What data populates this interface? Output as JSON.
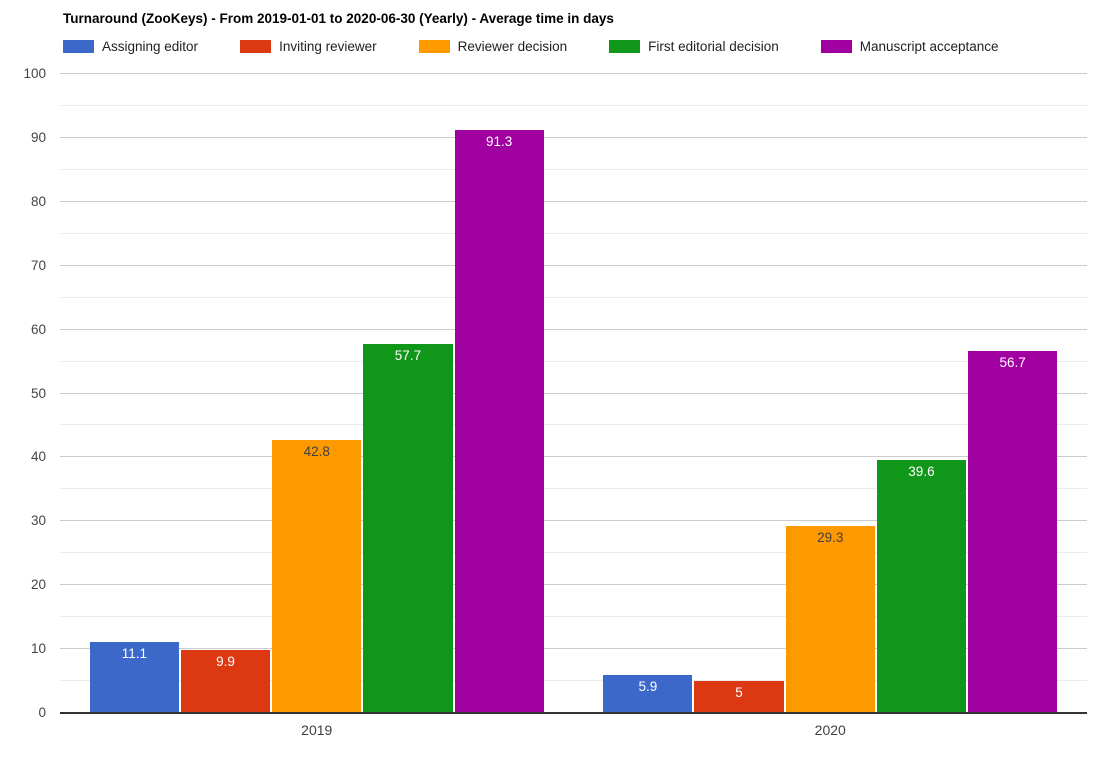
{
  "chart_data": {
    "type": "bar",
    "title": "Turnaround (ZooKeys) - From 2019-01-01 to 2020-06-30 (Yearly) - Average time in days",
    "categories": [
      "2019",
      "2020"
    ],
    "series": [
      {
        "name": "Assigning editor",
        "color": "#3b68c9",
        "label_color": "#ffffff",
        "values": [
          11.1,
          5.9
        ],
        "labels": [
          "11.1",
          "5.9"
        ]
      },
      {
        "name": "Inviting reviewer",
        "color": "#dc3912",
        "label_color": "#ffffff",
        "values": [
          9.9,
          5
        ],
        "labels": [
          "9.9",
          "5"
        ]
      },
      {
        "name": "Reviewer decision",
        "color": "#ff9900",
        "label_color": "#404040",
        "values": [
          42.8,
          29.3
        ],
        "labels": [
          "42.8",
          "29.3"
        ]
      },
      {
        "name": "First editorial decision",
        "color": "#109618",
        "label_color": "#ffffff",
        "values": [
          57.7,
          39.6
        ],
        "labels": [
          "57.7",
          "39.6"
        ]
      },
      {
        "name": "Manuscript acceptance",
        "color": "#a000a0",
        "label_color": "#ffffff",
        "values": [
          91.3,
          56.7
        ],
        "labels": [
          "91.3",
          "56.7"
        ]
      }
    ],
    "xlabel": "",
    "ylabel": "",
    "ylim": [
      0,
      100
    ],
    "y_major_step": 10,
    "y_minor_step": 5,
    "grid": true,
    "legend_position": "top",
    "colors": {
      "grid_major": "#cccccc",
      "grid_minor": "#ebebeb",
      "axis_line": "#333333",
      "tick_label": "#444444",
      "category_label": "#3c4043",
      "title": "#000000",
      "legend_label": "#222222",
      "background": "#ffffff"
    }
  }
}
